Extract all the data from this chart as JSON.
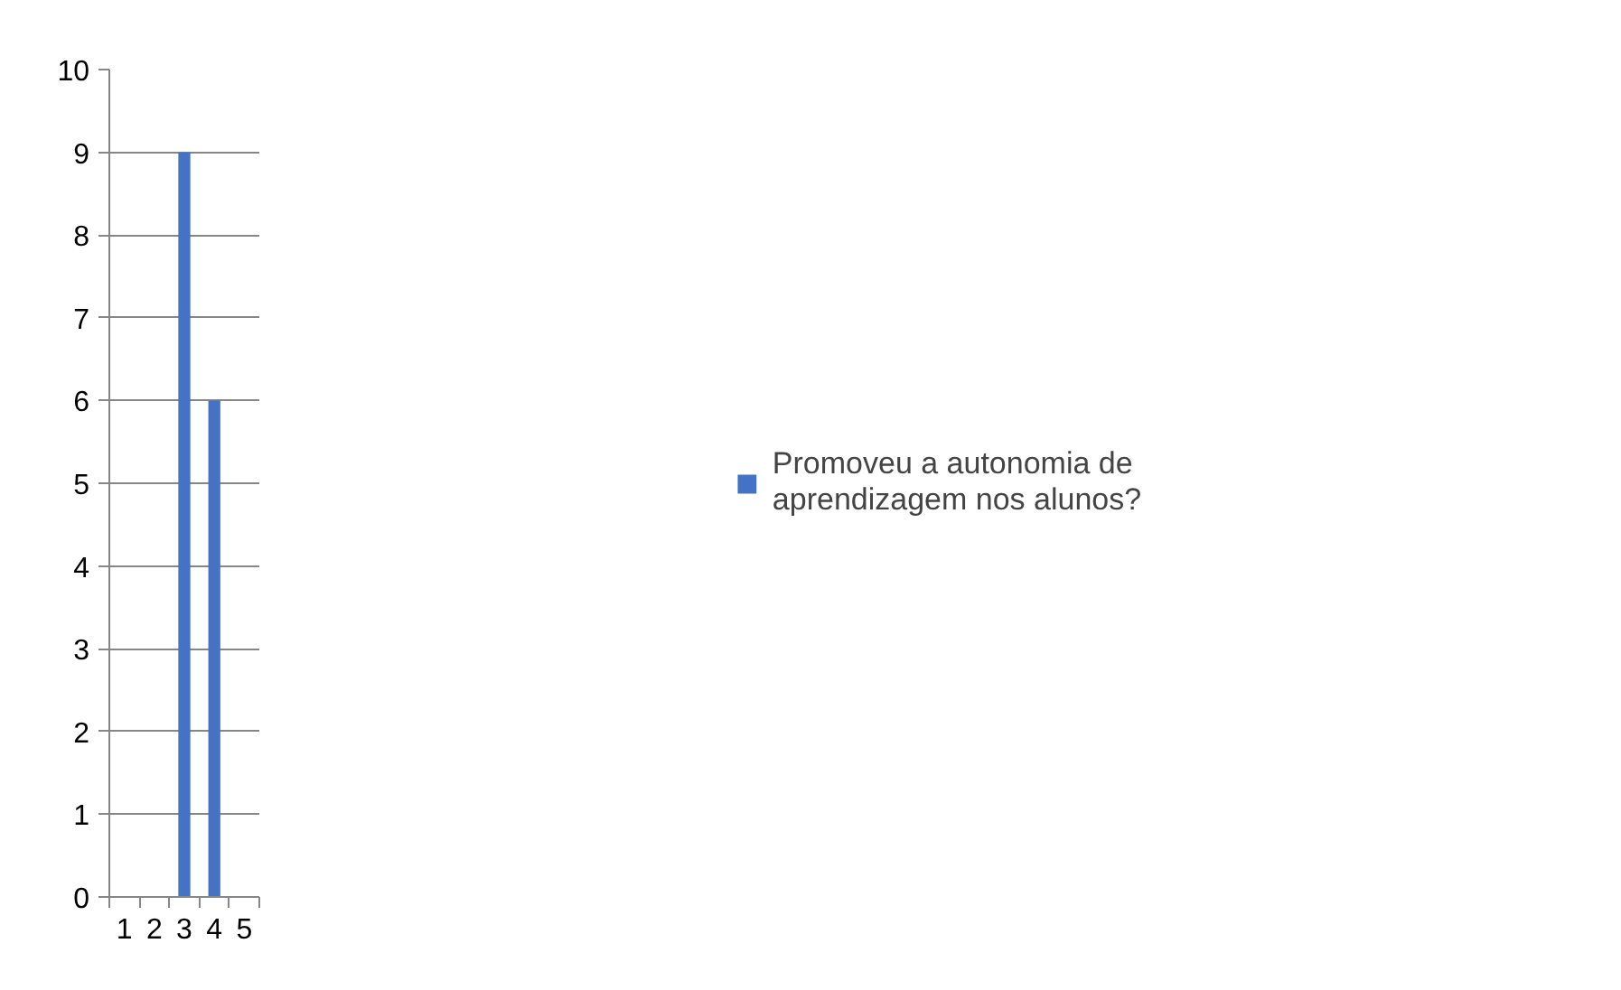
{
  "chart_data": {
    "type": "bar",
    "categories": [
      "1",
      "2",
      "3",
      "4",
      "5"
    ],
    "series": [
      {
        "name": "Promoveu a autonomia de aprendizagem nos alunos?",
        "color": "#4472c4",
        "values": [
          0,
          0,
          9,
          6,
          0
        ]
      }
    ],
    "ylim": [
      0,
      10
    ],
    "yticks": [
      0,
      1,
      2,
      3,
      4,
      5,
      6,
      7,
      8,
      9,
      10
    ],
    "grid": "y",
    "legend": "right"
  }
}
